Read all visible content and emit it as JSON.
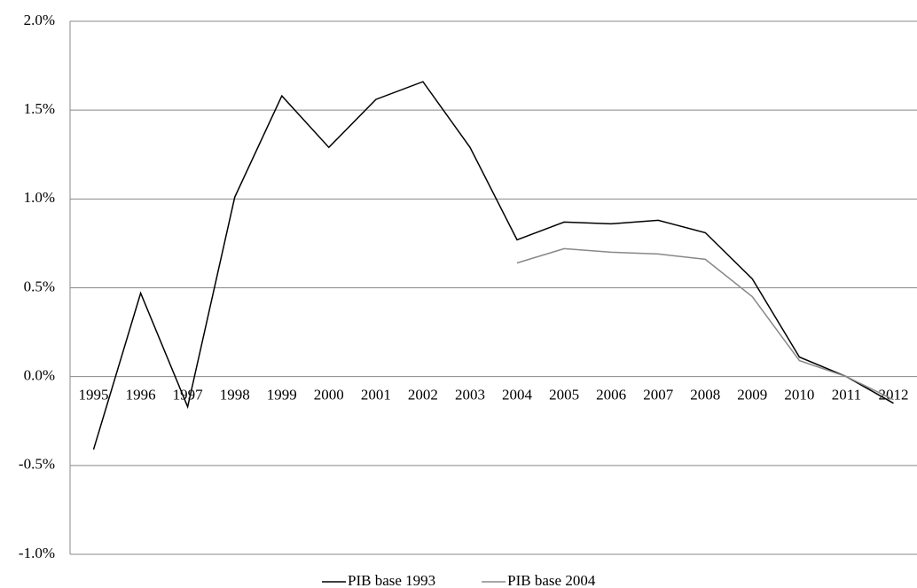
{
  "chart_data": {
    "type": "line",
    "categories": [
      "1995",
      "1996",
      "1997",
      "1998",
      "1999",
      "2000",
      "2001",
      "2002",
      "2003",
      "2004",
      "2005",
      "2006",
      "2007",
      "2008",
      "2009",
      "2010",
      "2011",
      "2012"
    ],
    "series": [
      {
        "name": "PIB base 1993",
        "color": "#000000",
        "values": [
          -0.41,
          0.47,
          -0.17,
          1.01,
          1.58,
          1.29,
          1.56,
          1.66,
          1.29,
          0.77,
          0.87,
          0.86,
          0.88,
          0.81,
          0.55,
          0.11,
          0.0,
          -0.15
        ]
      },
      {
        "name": "PIB base 2004",
        "color": "#888888",
        "values": [
          null,
          null,
          null,
          null,
          null,
          null,
          null,
          null,
          null,
          0.64,
          0.72,
          0.7,
          0.69,
          0.66,
          0.45,
          0.09,
          0.0,
          -0.13
        ]
      }
    ],
    "ylim": [
      -1.0,
      2.0
    ],
    "yticks": [
      {
        "value": -1.0,
        "label": "-1.0%"
      },
      {
        "value": -0.5,
        "label": "-0.5%"
      },
      {
        "value": 0.0,
        "label": "0.0%"
      },
      {
        "value": 0.5,
        "label": "0.5%"
      },
      {
        "value": 1.0,
        "label": "1.0%"
      },
      {
        "value": 1.5,
        "label": "1.5%"
      },
      {
        "value": 2.0,
        "label": "2.0%"
      }
    ],
    "grid": true,
    "legend": "bottom"
  }
}
